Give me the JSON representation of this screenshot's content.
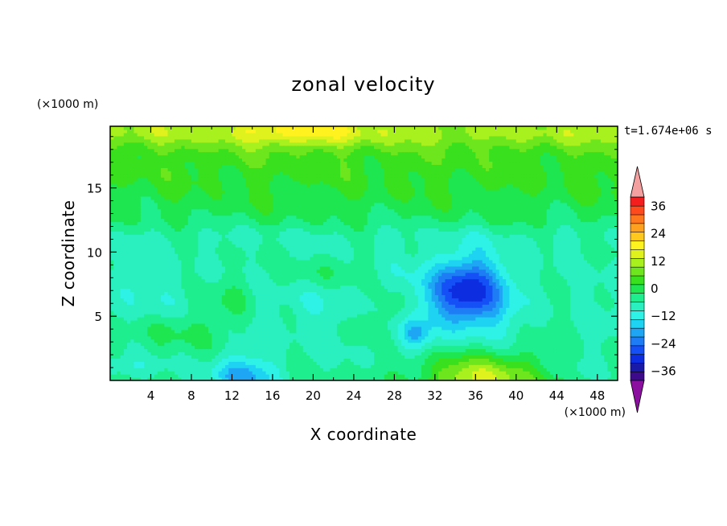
{
  "chart_data": {
    "type": "contour",
    "title": "zonal velocity",
    "xlabel": "X coordinate",
    "ylabel": "Z coordinate",
    "x_unit": "(×1000 m)",
    "y_unit": "(×1000 m)",
    "time_label": "t=1.674e+06 s",
    "xlim": [
      0,
      50
    ],
    "ylim": [
      0,
      19.8
    ],
    "x_ticks": [
      4,
      8,
      12,
      16,
      20,
      24,
      28,
      32,
      36,
      40,
      44,
      48
    ],
    "y_ticks": [
      5,
      10,
      15
    ],
    "levels": [
      -40,
      -36,
      -32,
      -28,
      -24,
      -20,
      -16,
      -12,
      -8,
      -4,
      0,
      4,
      8,
      12,
      16,
      20,
      24,
      28,
      32,
      36,
      40
    ],
    "colorbar_labels": [
      36,
      24,
      12,
      0,
      -12,
      -24,
      -36
    ],
    "colors": [
      "#3d0a8c",
      "#1a1aa8",
      "#0d2ee0",
      "#1450f5",
      "#1e7cf5",
      "#1ea6f5",
      "#1ed2f2",
      "#2ef2e6",
      "#2af0c0",
      "#1eee8e",
      "#1ee650",
      "#38e01e",
      "#6ee61e",
      "#a8f01e",
      "#e0f21e",
      "#fff21e",
      "#ffc81e",
      "#ffa01e",
      "#ff781e",
      "#ff4a1e",
      "#f51e1e"
    ],
    "under_color": "#8c10a0",
    "over_color": "#f5a0a0",
    "features": [
      {
        "x": 35,
        "z": 7,
        "value": -26,
        "kind": "minimum"
      },
      {
        "x": 30,
        "z": 3.5,
        "value": -16,
        "kind": "minimum"
      },
      {
        "x": 13,
        "z": 0.5,
        "value": -18,
        "kind": "minimum"
      },
      {
        "x": 36,
        "z": 0.5,
        "value": 14,
        "kind": "maximum"
      },
      {
        "x": 19,
        "z": 19.5,
        "value": 14,
        "kind": "maximum"
      },
      {
        "x": 12,
        "z": 6,
        "value": 2,
        "kind": "maximum"
      }
    ]
  }
}
